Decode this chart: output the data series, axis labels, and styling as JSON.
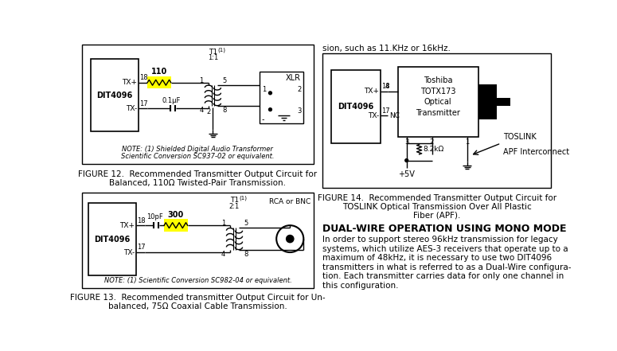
{
  "bg_color": "#ffffff",
  "fig_width": 7.75,
  "fig_height": 4.41,
  "dpi": 100,
  "top_text_right": "sion, such as 11.KHz or 16kHz.",
  "fig12_caption_line1": "FIGURE 12.  Recommended Transmitter Output Circuit for",
  "fig12_caption_line2": "Balanced, 110Ω Twisted-Pair Transmission.",
  "fig13_caption_line1": "FIGURE 13.  Recommended transmitter Output Circuit for Un-",
  "fig13_caption_line2": "balanced, 75Ω Coaxial Cable Transmission.",
  "fig14_caption_line1": "FIGURE 14.  Recommended Transmitter Output Circuit for",
  "fig14_caption_line2": "TOSLINK Optical Transmission Over All Plastic",
  "fig14_caption_line3": "Fiber (APF).",
  "dwire_title": "DUAL-WIRE OPERATION USING MONO MODE",
  "dwire_body_lines": [
    "In order to support stereo 96kHz transmission for legacy",
    "systems, which utilize AES-3 receivers that operate up to a",
    "maximum of 48kHz, it is necessary to use two DIT4096",
    "transmitters in what is referred to as a Dual-Wire configura-",
    "tion. Each transmitter carries data for only one channel in",
    "this configuration."
  ],
  "yellow": "#ffff00",
  "black": "#000000"
}
